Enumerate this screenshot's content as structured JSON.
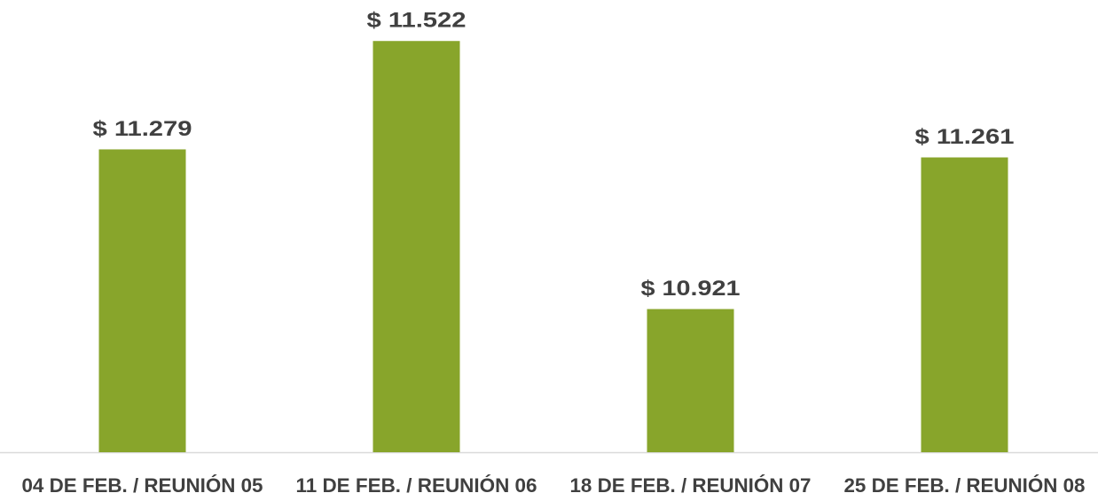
{
  "chart_data": {
    "type": "bar",
    "categories": [
      "04 DE FEB. / REUNIÓN 05",
      "11 DE FEB. / REUNIÓN 06",
      "18 DE FEB. / REUNIÓN 07",
      "25 DE FEB. / REUNIÓN 08"
    ],
    "values": [
      11279,
      11522,
      10921,
      11261
    ],
    "value_labels": [
      "$ 11.279",
      "$ 11.522",
      "$ 10.921",
      "$ 11.261"
    ],
    "color": "#88a52b",
    "ylim": [
      10600,
      11600
    ]
  }
}
